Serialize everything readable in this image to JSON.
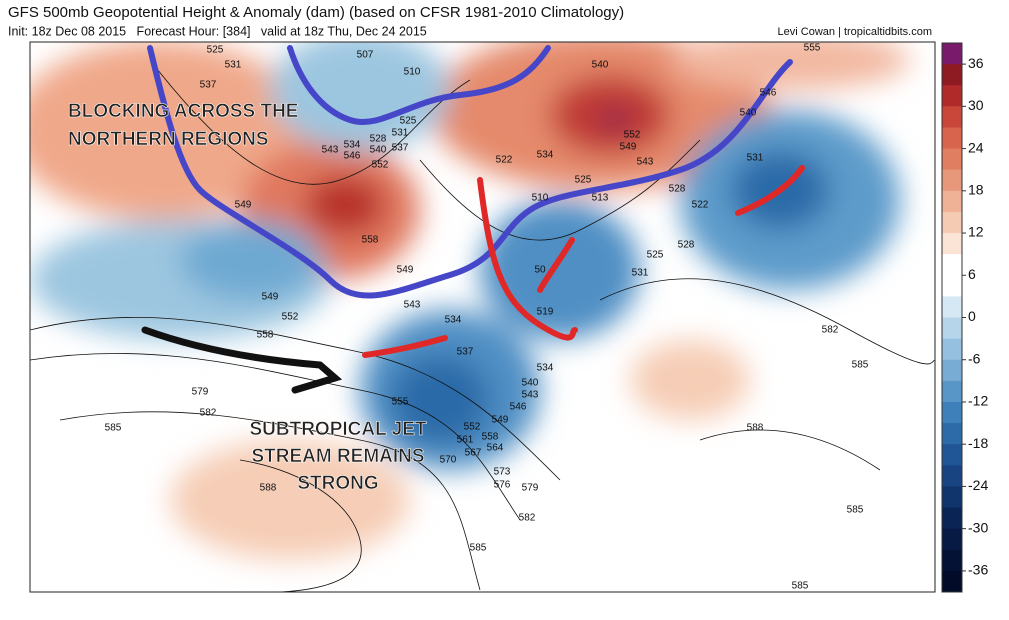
{
  "header": {
    "title": "GFS 500mb Geopotential Height & Anomaly (dam) (based on CFSR 1981-2010 Climatology)",
    "init": "Init: 18z Dec 08 2015   Forecast Hour: [384]   valid at 18z Thu, Dec 24 2015",
    "credit": "Levi Cowan | tropicaltidbits.com"
  },
  "annotations": {
    "blocking": [
      "BLOCKING ACROSS THE",
      "NORTHERN REGIONS"
    ],
    "subtropical": [
      "SUBTROPICAL JET",
      "STREAM REMAINS",
      "STRONG"
    ]
  },
  "contour_labels": [
    "525",
    "531",
    "537",
    "507",
    "510",
    "540",
    "555",
    "546",
    "540",
    "552",
    "549",
    "543",
    "531",
    "528",
    "522",
    "510",
    "513",
    "525",
    "522",
    "534",
    "531",
    "528",
    "525",
    "534",
    "546",
    "543",
    "540",
    "537",
    "552",
    "558",
    "549",
    "543",
    "549",
    "549",
    "552",
    "558",
    "534",
    "537",
    "534",
    "540",
    "543",
    "546",
    "549",
    "552",
    "555",
    "561",
    "558",
    "564",
    "567",
    "570",
    "573",
    "576",
    "579",
    "582",
    "579",
    "582",
    "585",
    "588",
    "585",
    "588",
    "582",
    "585",
    "585",
    "585",
    "519",
    "525",
    "531",
    "528",
    "50"
  ],
  "colorbar": {
    "ticks": [
      36,
      30,
      24,
      18,
      12,
      6,
      0,
      -6,
      -12,
      -18,
      -24,
      -30,
      -36
    ]
  }
}
